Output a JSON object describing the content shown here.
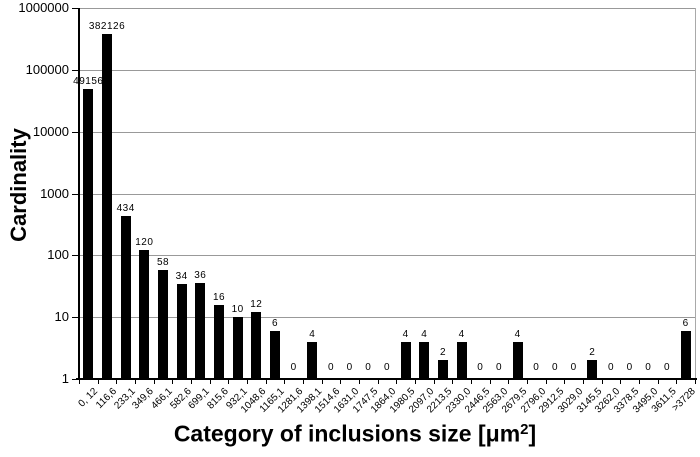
{
  "figure": {
    "background": "#ffffff"
  },
  "chart_data": {
    "type": "bar",
    "title": "",
    "ylabel": "Cardinality",
    "xlabel": "Category of inclusions size [μm2]",
    "xlabel_parts": {
      "prefix": "Category of inclusions size [μm",
      "superscript": "2",
      "suffix": "]"
    },
    "y_scale": "log",
    "ylim": [
      1,
      1000000
    ],
    "grid": "horizontal-decades",
    "legend": "none",
    "bar_color": "#000000",
    "gridline_color": "#999999",
    "ytick_labels": [
      "1",
      "10",
      "100",
      "1000",
      "10000",
      "100000",
      "1000000"
    ],
    "categories": [
      "0, 12",
      "116,6",
      "233,1",
      "349,6",
      "466,1",
      "582,6",
      "699,1",
      "815,6",
      "932,1",
      "1048,6",
      "1165,1",
      "1281,6",
      "1398,1",
      "1514,6",
      "1631,0",
      "1747,5",
      "1864,0",
      "1980,5",
      "2097,0",
      "2213,5",
      "2330,0",
      "2446,5",
      "2563,0",
      "2679,5",
      "2796,0",
      "2912,5",
      "3029,0",
      "3145,5",
      "3262,0",
      "3378,5",
      "3495,0",
      "3611,5",
      ">3728"
    ],
    "values": [
      49156,
      382126,
      434,
      120,
      58,
      34,
      36,
      16,
      10,
      12,
      6,
      0,
      4,
      0,
      0,
      0,
      0,
      4,
      4,
      2,
      4,
      0,
      0,
      4,
      0,
      0,
      0,
      2,
      0,
      0,
      0,
      0,
      6
    ],
    "value_labels": [
      "49156",
      "382126",
      "434",
      "120",
      "58",
      "34",
      "36",
      "16",
      "10",
      "12",
      "6",
      "0",
      "4",
      "0",
      "0",
      "0",
      "0",
      "4",
      "4",
      "2",
      "4",
      "0",
      "0",
      "4",
      "0",
      "0",
      "0",
      "2",
      "0",
      "0",
      "0",
      "0",
      "6"
    ]
  }
}
